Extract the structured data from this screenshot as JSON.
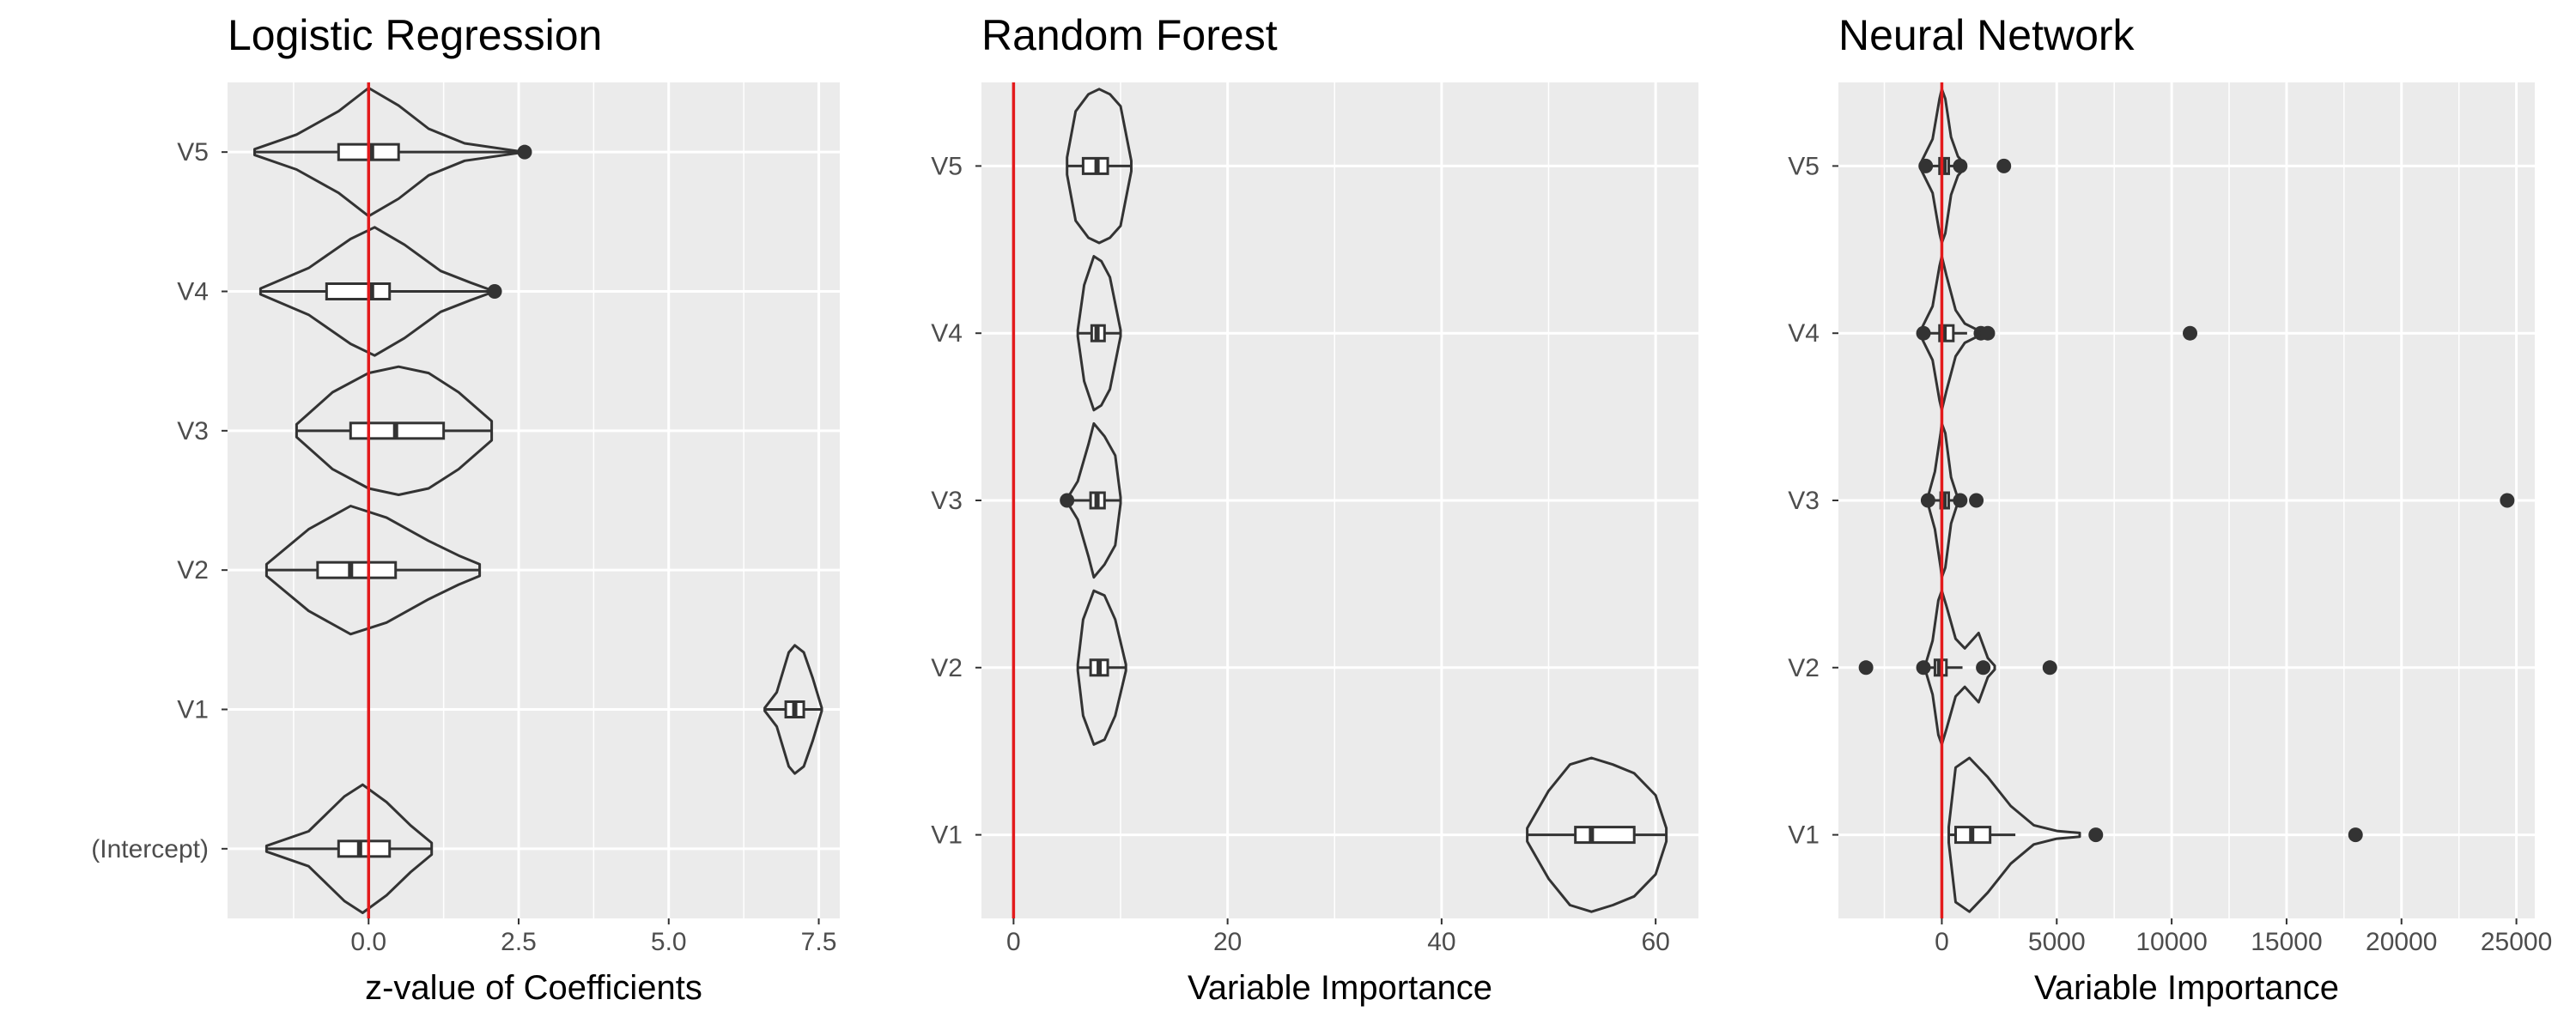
{
  "chart_data": [
    {
      "type": "violin",
      "title": "Logistic Regression",
      "xlabel": "z-value of Coefficients",
      "ylabel": "",
      "xlim": [
        -2.35,
        7.85
      ],
      "x_ticks": [
        0.0,
        2.5,
        5.0,
        7.5
      ],
      "x_tick_labels": [
        "0.0",
        "2.5",
        "5.0",
        "7.5"
      ],
      "categories": [
        "V5",
        "V4",
        "V3",
        "V2",
        "V1",
        "(Intercept)"
      ],
      "reference_line": 0,
      "grid": true,
      "distributions": [
        {
          "name": "V5",
          "min": -1.9,
          "q1": -0.5,
          "median": 0.05,
          "q3": 0.5,
          "max": 2.6,
          "violin": [
            [
              -1.9,
              0.01
            ],
            [
              -1.2,
              0.06
            ],
            [
              -0.5,
              0.14
            ],
            [
              0.0,
              0.22
            ],
            [
              0.5,
              0.16
            ],
            [
              1.0,
              0.08
            ],
            [
              1.6,
              0.03
            ],
            [
              2.6,
              0.0
            ]
          ],
          "outliers": [
            2.6
          ]
        },
        {
          "name": "V4",
          "min": -1.8,
          "q1": -0.7,
          "median": 0.05,
          "q3": 0.35,
          "max": 2.1,
          "violin": [
            [
              -1.8,
              0.01
            ],
            [
              -1.0,
              0.08
            ],
            [
              -0.3,
              0.18
            ],
            [
              0.1,
              0.22
            ],
            [
              0.6,
              0.16
            ],
            [
              1.2,
              0.07
            ],
            [
              1.7,
              0.03
            ],
            [
              2.1,
              0.0
            ]
          ],
          "outliers": [
            2.1
          ]
        },
        {
          "name": "V3",
          "min": -1.2,
          "q1": -0.3,
          "median": 0.45,
          "q3": 1.25,
          "max": 2.05,
          "violin": [
            [
              -1.2,
              0.02
            ],
            [
              -0.6,
              0.12
            ],
            [
              0.0,
              0.18
            ],
            [
              0.5,
              0.2
            ],
            [
              1.0,
              0.18
            ],
            [
              1.5,
              0.12
            ],
            [
              2.05,
              0.03
            ]
          ],
          "outliers": []
        },
        {
          "name": "V2",
          "min": -1.7,
          "q1": -0.85,
          "median": -0.3,
          "q3": 0.45,
          "max": 1.85,
          "violin": [
            [
              -1.7,
              0.02
            ],
            [
              -1.0,
              0.14
            ],
            [
              -0.3,
              0.22
            ],
            [
              0.3,
              0.18
            ],
            [
              1.0,
              0.1
            ],
            [
              1.5,
              0.05
            ],
            [
              1.85,
              0.02
            ]
          ],
          "outliers": []
        },
        {
          "name": "V1",
          "min": 6.6,
          "q1": 6.95,
          "median": 7.1,
          "q3": 7.25,
          "max": 7.55,
          "violin": [
            [
              6.6,
              0.01
            ],
            [
              6.8,
              0.12
            ],
            [
              7.0,
              0.4
            ],
            [
              7.1,
              0.45
            ],
            [
              7.25,
              0.4
            ],
            [
              7.4,
              0.22
            ],
            [
              7.55,
              0.01
            ]
          ],
          "outliers": []
        },
        {
          "name": "(Intercept)",
          "min": -1.7,
          "q1": -0.5,
          "median": -0.15,
          "q3": 0.35,
          "max": 1.05,
          "violin": [
            [
              -1.7,
              0.01
            ],
            [
              -1.0,
              0.06
            ],
            [
              -0.4,
              0.18
            ],
            [
              -0.1,
              0.22
            ],
            [
              0.3,
              0.16
            ],
            [
              0.7,
              0.08
            ],
            [
              1.05,
              0.02
            ]
          ],
          "outliers": []
        }
      ]
    },
    {
      "type": "violin",
      "title": "Random Forest",
      "xlabel": "Variable Importance",
      "ylabel": "",
      "xlim": [
        -3,
        64
      ],
      "x_ticks": [
        0,
        20,
        40,
        60
      ],
      "x_tick_labels": [
        "0",
        "20",
        "40",
        "60"
      ],
      "categories": [
        "V5",
        "V4",
        "V3",
        "V2",
        "V1"
      ],
      "reference_line": 0,
      "grid": true,
      "distributions": [
        {
          "name": "V5",
          "min": 5.0,
          "q1": 6.5,
          "median": 7.8,
          "q3": 8.8,
          "max": 11.0,
          "violin": [
            [
              5.0,
              0.05
            ],
            [
              5.8,
              0.32
            ],
            [
              7.0,
              0.42
            ],
            [
              8.0,
              0.45
            ],
            [
              9.0,
              0.42
            ],
            [
              10.0,
              0.35
            ],
            [
              11.0,
              0.03
            ]
          ],
          "outliers": []
        },
        {
          "name": "V4",
          "min": 6.0,
          "q1": 7.3,
          "median": 7.8,
          "q3": 8.5,
          "max": 10.0,
          "violin": [
            [
              6.0,
              0.02
            ],
            [
              6.6,
              0.3
            ],
            [
              7.5,
              0.48
            ],
            [
              8.2,
              0.45
            ],
            [
              9.0,
              0.35
            ],
            [
              10.0,
              0.02
            ]
          ],
          "outliers": []
        },
        {
          "name": "V3",
          "min": 5.0,
          "q1": 7.2,
          "median": 7.8,
          "q3": 8.5,
          "max": 10.0,
          "violin": [
            [
              5.0,
              0.01
            ],
            [
              6.0,
              0.12
            ],
            [
              7.0,
              0.35
            ],
            [
              7.5,
              0.48
            ],
            [
              8.5,
              0.4
            ],
            [
              9.5,
              0.28
            ],
            [
              10.0,
              0.02
            ]
          ],
          "outliers": [
            5.0
          ]
        },
        {
          "name": "V2",
          "min": 6.0,
          "q1": 7.2,
          "median": 8.0,
          "q3": 8.8,
          "max": 10.5,
          "violin": [
            [
              6.0,
              0.02
            ],
            [
              6.5,
              0.3
            ],
            [
              7.5,
              0.48
            ],
            [
              8.5,
              0.45
            ],
            [
              9.5,
              0.3
            ],
            [
              10.5,
              0.02
            ]
          ],
          "outliers": []
        },
        {
          "name": "V1",
          "min": 48,
          "q1": 52.5,
          "median": 54,
          "q3": 58,
          "max": 61,
          "violin": [
            [
              48,
              0.03
            ],
            [
              50,
              0.2
            ],
            [
              52,
              0.32
            ],
            [
              54,
              0.35
            ],
            [
              56,
              0.32
            ],
            [
              58,
              0.28
            ],
            [
              60,
              0.18
            ],
            [
              61,
              0.03
            ]
          ],
          "outliers": []
        }
      ]
    },
    {
      "type": "violin",
      "title": "Neural Network",
      "xlabel": "Variable Importance",
      "ylabel": "",
      "xlim": [
        -4500,
        25800
      ],
      "x_ticks": [
        0,
        5000,
        10000,
        15000,
        20000,
        25000
      ],
      "x_tick_labels": [
        "0",
        "5000",
        "10000",
        "15000",
        "20000",
        "25000"
      ],
      "categories": [
        "V5",
        "V4",
        "V3",
        "V2",
        "V1"
      ],
      "reference_line": 0,
      "grid": true,
      "distributions": [
        {
          "name": "V5",
          "min": -600,
          "q1": -100,
          "median": 100,
          "q3": 300,
          "max": 800,
          "violin": [
            [
              -900,
              0.02
            ],
            [
              -400,
              0.14
            ],
            [
              -100,
              0.35
            ],
            [
              0,
              0.4
            ],
            [
              150,
              0.35
            ],
            [
              400,
              0.15
            ],
            [
              700,
              0.05
            ],
            [
              1000,
              0.01
            ]
          ],
          "outliers": [
            -700,
            800,
            2700
          ]
        },
        {
          "name": "V4",
          "min": -800,
          "q1": -100,
          "median": 100,
          "q3": 500,
          "max": 1100,
          "violin": [
            [
              -900,
              0.02
            ],
            [
              -400,
              0.14
            ],
            [
              -100,
              0.35
            ],
            [
              0,
              0.4
            ],
            [
              200,
              0.3
            ],
            [
              600,
              0.12
            ],
            [
              1000,
              0.05
            ],
            [
              1500,
              0.02
            ]
          ],
          "outliers": [
            -800,
            1700,
            2000,
            10800
          ]
        },
        {
          "name": "V3",
          "min": -500,
          "q1": -50,
          "median": 100,
          "q3": 300,
          "max": 700,
          "violin": [
            [
              -600,
              0.02
            ],
            [
              -300,
              0.15
            ],
            [
              -50,
              0.35
            ],
            [
              0,
              0.4
            ],
            [
              150,
              0.35
            ],
            [
              400,
              0.12
            ],
            [
              700,
              0.01
            ]
          ],
          "outliers": [
            -600,
            800,
            1500,
            24600
          ]
        },
        {
          "name": "V2",
          "min": -700,
          "q1": -300,
          "median": -100,
          "q3": 200,
          "max": 900,
          "violin": [
            [
              -700,
              0.02
            ],
            [
              -400,
              0.14
            ],
            [
              -150,
              0.35
            ],
            [
              0,
              0.4
            ],
            [
              200,
              0.32
            ],
            [
              600,
              0.15
            ],
            [
              1000,
              0.1
            ],
            [
              1600,
              0.18
            ],
            [
              2000,
              0.05
            ],
            [
              2300,
              0.01
            ]
          ],
          "outliers": [
            -3300,
            -800,
            1800,
            4700
          ]
        },
        {
          "name": "V1",
          "min": 300,
          "q1": 600,
          "median": 1300,
          "q3": 2100,
          "max": 3200,
          "violin": [
            [
              300,
              0.04
            ],
            [
              600,
              0.35
            ],
            [
              1200,
              0.4
            ],
            [
              2000,
              0.3
            ],
            [
              3000,
              0.15
            ],
            [
              4000,
              0.05
            ],
            [
              5000,
              0.02
            ],
            [
              6000,
              0.01
            ]
          ],
          "outliers": [
            6700,
            18000
          ]
        }
      ]
    }
  ]
}
